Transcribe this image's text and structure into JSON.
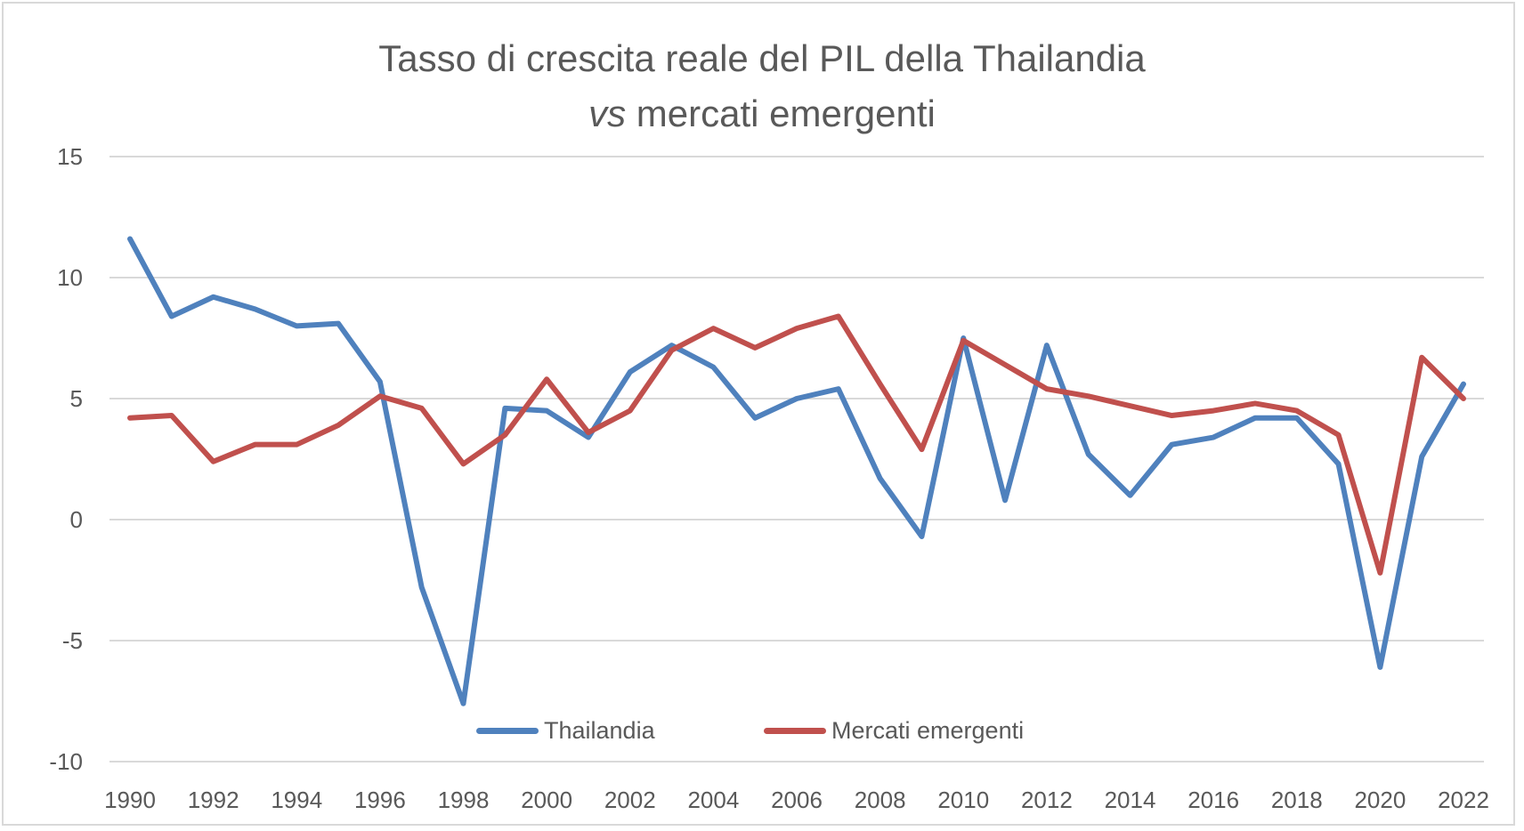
{
  "chart_data": {
    "type": "line",
    "title": "Tasso di crescita reale del PIL della Thailandia",
    "title_line2_italic": "vs",
    "title_line2_rest": " mercati emergenti",
    "xlabel": "",
    "ylabel": "",
    "ylim": [
      -10,
      15
    ],
    "yticks": [
      "15",
      "10",
      "5",
      "0",
      "-5",
      "-10"
    ],
    "ytick_values": [
      15,
      10,
      5,
      0,
      -5,
      -10
    ],
    "x": [
      1990,
      1991,
      1992,
      1993,
      1994,
      1995,
      1996,
      1997,
      1998,
      1999,
      2000,
      2001,
      2002,
      2003,
      2004,
      2005,
      2006,
      2007,
      2008,
      2009,
      2010,
      2011,
      2012,
      2013,
      2014,
      2015,
      2016,
      2017,
      2018,
      2019,
      2020,
      2021,
      2022
    ],
    "xtick_labels": [
      "1990",
      "1992",
      "1994",
      "1996",
      "1998",
      "2000",
      "2002",
      "2004",
      "2006",
      "2008",
      "2010",
      "2012",
      "2014",
      "2016",
      "2018",
      "2020",
      "2022"
    ],
    "grid": true,
    "legend_position": "bottom",
    "series": [
      {
        "name": "Thailandia",
        "color": "#4f81bd",
        "values": [
          11.6,
          8.4,
          9.2,
          8.7,
          8.0,
          8.1,
          5.7,
          -2.8,
          -7.6,
          4.6,
          4.5,
          3.4,
          6.1,
          7.2,
          6.3,
          4.2,
          5.0,
          5.4,
          1.7,
          -0.7,
          7.5,
          0.8,
          7.2,
          2.7,
          1.0,
          3.1,
          3.4,
          4.2,
          4.2,
          2.3,
          -6.1,
          2.6,
          5.6
        ]
      },
      {
        "name": "Mercati emergenti",
        "color": "#c0504d",
        "values": [
          4.2,
          4.3,
          2.4,
          3.1,
          3.1,
          3.9,
          5.1,
          4.6,
          2.3,
          3.5,
          5.8,
          3.6,
          4.5,
          7.0,
          7.9,
          7.1,
          7.9,
          8.4,
          5.6,
          2.9,
          7.4,
          6.4,
          5.4,
          5.1,
          4.7,
          4.3,
          4.5,
          4.8,
          4.5,
          3.5,
          -2.2,
          6.7,
          5.0
        ]
      }
    ]
  }
}
